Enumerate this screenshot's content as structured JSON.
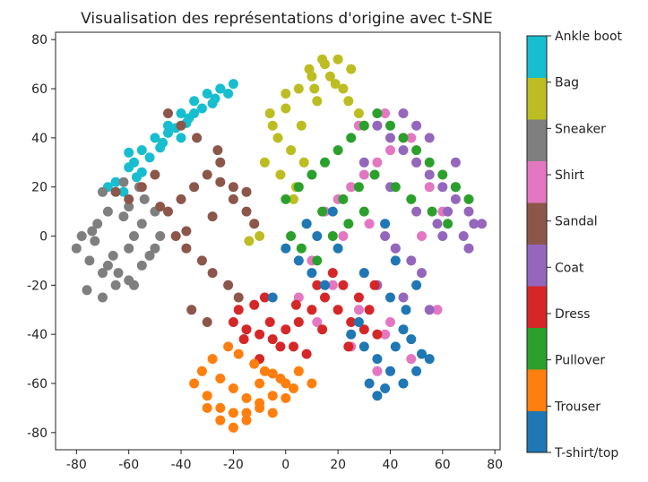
{
  "chart_data": {
    "type": "scatter",
    "title": "Visualisation des représentations d'origine avec t-SNE",
    "xlabel": "",
    "ylabel": "",
    "xlim": [
      -88,
      82
    ],
    "ylim": [
      -87,
      83
    ],
    "x_ticks": [
      -80,
      -60,
      -40,
      -20,
      0,
      20,
      40,
      60,
      80
    ],
    "y_ticks": [
      -80,
      -60,
      -40,
      -20,
      0,
      20,
      40,
      60,
      80
    ],
    "grid": false,
    "colorbar": {
      "placement": "right",
      "labels": [
        "T-shirt/top",
        "Trouser",
        "Pullover",
        "Dress",
        "Coat",
        "Sandal",
        "Shirt",
        "Sneaker",
        "Bag",
        "Ankle boot"
      ],
      "colors": [
        "#1f77b4",
        "#ff7f0e",
        "#2ca02c",
        "#d62728",
        "#9467bd",
        "#8c564b",
        "#e377c2",
        "#7f7f7f",
        "#bcbd22",
        "#17becf"
      ]
    },
    "series": [
      {
        "label_index": 9,
        "color": "#17becf",
        "x": [
          -65,
          -60,
          -55,
          -50,
          -45,
          -40,
          -35,
          -30,
          -25,
          -20,
          -62,
          -57,
          -52,
          -47,
          -42,
          -37,
          -32,
          -27,
          -22,
          -68,
          -58,
          -48,
          -38,
          -28,
          -55,
          -45,
          -35,
          -25,
          -60,
          -40
        ],
        "y": [
          22,
          28,
          35,
          40,
          45,
          50,
          55,
          58,
          60,
          62,
          18,
          24,
          32,
          38,
          44,
          48,
          52,
          56,
          58,
          20,
          30,
          36,
          46,
          54,
          26,
          42,
          50,
          60,
          34,
          40
        ]
      },
      {
        "label_index": 8,
        "color": "#bcbd22",
        "x": [
          -5,
          0,
          5,
          10,
          15,
          20,
          25,
          -3,
          2,
          7,
          12,
          17,
          22,
          -8,
          -2,
          4,
          9,
          14,
          19,
          -6,
          0,
          6,
          -10,
          -14,
          24,
          28,
          30,
          -12,
          3,
          11
        ],
        "y": [
          45,
          52,
          60,
          65,
          70,
          72,
          68,
          40,
          35,
          30,
          55,
          65,
          60,
          30,
          25,
          20,
          68,
          72,
          62,
          50,
          58,
          45,
          0,
          -2,
          55,
          50,
          45,
          5,
          15,
          60
        ]
      },
      {
        "label_index": 7,
        "color": "#7f7f7f",
        "x": [
          -80,
          -75,
          -70,
          -65,
          -60,
          -55,
          -50,
          -78,
          -72,
          -68,
          -62,
          -58,
          -52,
          -76,
          -70,
          -64,
          -60,
          -54,
          -73,
          -66,
          -58,
          -70,
          -62,
          -56,
          -50,
          -74,
          -68,
          -60,
          -55,
          -48
        ],
        "y": [
          -5,
          -10,
          -15,
          -20,
          -18,
          -12,
          -5,
          0,
          5,
          10,
          8,
          0,
          -8,
          -22,
          -25,
          -15,
          12,
          15,
          -2,
          -8,
          -20,
          18,
          22,
          20,
          10,
          2,
          -12,
          -5,
          5,
          0
        ]
      },
      {
        "label_index": 6,
        "color": "#e377c2",
        "x": [
          15,
          20,
          25,
          30,
          35,
          40,
          45,
          50,
          55,
          60,
          10,
          18,
          28,
          38,
          48,
          58,
          22,
          32,
          42,
          52,
          5,
          12,
          25,
          35,
          45,
          28,
          38,
          48,
          30,
          40
        ],
        "y": [
          10,
          15,
          20,
          25,
          30,
          35,
          40,
          30,
          20,
          10,
          -10,
          -20,
          -30,
          -40,
          -50,
          -30,
          0,
          5,
          -5,
          0,
          -25,
          -35,
          -45,
          -55,
          -60,
          45,
          50,
          40,
          -15,
          -35
        ]
      },
      {
        "label_index": 5,
        "color": "#8c564b",
        "x": [
          -45,
          -40,
          -35,
          -30,
          -25,
          -20,
          -15,
          -42,
          -38,
          -32,
          -28,
          -22,
          -18,
          -36,
          -30,
          -26,
          -34,
          -40,
          -45,
          -55,
          -50,
          -60,
          -65,
          -12,
          -20,
          -28,
          -38,
          -48,
          -25,
          -15
        ],
        "y": [
          10,
          15,
          20,
          25,
          30,
          20,
          10,
          0,
          -5,
          -10,
          -15,
          -20,
          -25,
          -30,
          -35,
          35,
          40,
          45,
          50,
          20,
          25,
          15,
          18,
          5,
          15,
          8,
          2,
          12,
          22,
          18
        ]
      },
      {
        "label_index": 4,
        "color": "#9467bd",
        "x": [
          35,
          40,
          45,
          50,
          55,
          60,
          65,
          70,
          38,
          42,
          48,
          52,
          58,
          62,
          68,
          72,
          30,
          40,
          50,
          60,
          70,
          45,
          55,
          65,
          35,
          45,
          55,
          65,
          50,
          75
        ],
        "y": [
          45,
          40,
          35,
          30,
          25,
          20,
          15,
          10,
          0,
          -5,
          -10,
          -15,
          5,
          10,
          0,
          5,
          30,
          20,
          10,
          0,
          -5,
          50,
          40,
          30,
          -20,
          -25,
          -30,
          20,
          45,
          5
        ]
      },
      {
        "label_index": 3,
        "color": "#d62728",
        "x": [
          -20,
          -15,
          -10,
          -5,
          0,
          5,
          10,
          15,
          20,
          25,
          30,
          35,
          -18,
          -12,
          -8,
          -2,
          3,
          8,
          12,
          18,
          22,
          28,
          32,
          -16,
          -6,
          4,
          14,
          24,
          34,
          -10
        ],
        "y": [
          -35,
          -38,
          -40,
          -42,
          -38,
          -35,
          -30,
          -25,
          -30,
          -35,
          -38,
          -40,
          -30,
          -28,
          -25,
          -45,
          -45,
          -48,
          -20,
          -15,
          -20,
          -25,
          -30,
          -42,
          -35,
          -28,
          -38,
          -45,
          -20,
          -50
        ]
      },
      {
        "label_index": 2,
        "color": "#2ca02c",
        "x": [
          0,
          5,
          10,
          15,
          20,
          25,
          30,
          35,
          40,
          45,
          50,
          55,
          60,
          65,
          70,
          2,
          8,
          14,
          22,
          28,
          34,
          42,
          48,
          56,
          62,
          6,
          12,
          18,
          24,
          30
        ],
        "y": [
          15,
          20,
          25,
          30,
          35,
          40,
          45,
          50,
          45,
          40,
          35,
          30,
          25,
          20,
          15,
          0,
          5,
          10,
          15,
          20,
          25,
          20,
          15,
          10,
          5,
          -5,
          -10,
          0,
          5,
          10
        ]
      },
      {
        "label_index": 1,
        "color": "#ff7f0e",
        "x": [
          -35,
          -30,
          -25,
          -20,
          -15,
          -10,
          -5,
          0,
          5,
          10,
          -32,
          -28,
          -22,
          -18,
          -12,
          -8,
          -2,
          3,
          -30,
          -25,
          -20,
          -15,
          -10,
          -5,
          0,
          -25,
          -20,
          -15,
          -10,
          -5
        ],
        "y": [
          -60,
          -65,
          -70,
          -72,
          -75,
          -70,
          -65,
          -60,
          -55,
          -60,
          -55,
          -50,
          -45,
          -48,
          -52,
          -55,
          -58,
          -62,
          -70,
          -75,
          -78,
          -72,
          -68,
          -72,
          -66,
          -58,
          -62,
          -66,
          -60,
          -56
        ]
      },
      {
        "label_index": 0,
        "color": "#1f77b4",
        "x": [
          25,
          30,
          35,
          40,
          45,
          50,
          55,
          28,
          32,
          38,
          42,
          48,
          52,
          35,
          45,
          5,
          10,
          15,
          0,
          -5,
          12,
          20,
          30,
          40,
          50,
          8,
          18,
          38,
          42,
          46
        ],
        "y": [
          -40,
          -45,
          -50,
          -55,
          -60,
          -55,
          -50,
          -35,
          -60,
          -62,
          -45,
          -42,
          -48,
          -65,
          -38,
          -10,
          -15,
          -20,
          -5,
          -25,
          0,
          -5,
          -15,
          -25,
          -20,
          5,
          10,
          5,
          -10,
          -30
        ]
      }
    ]
  }
}
